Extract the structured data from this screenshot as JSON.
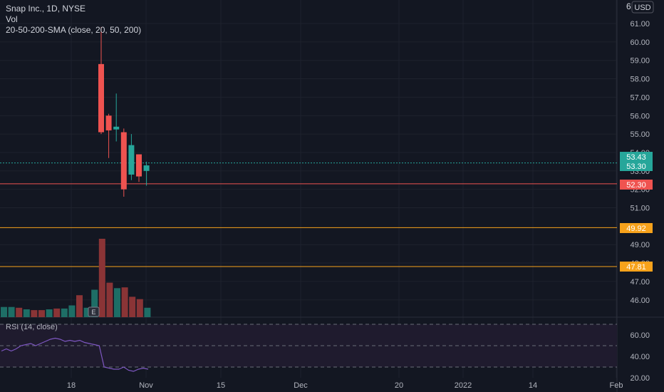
{
  "header": {
    "symbol_line": "Snap Inc., 1D, NYSE",
    "vol_label": "Vol",
    "sma_label": "20-50-200-SMA (close, 20, 50, 200)"
  },
  "currency_button": "USD",
  "top_right_glyph": "6",
  "price_axis": {
    "labels": [
      "61.00",
      "60.00",
      "59.00",
      "58.00",
      "57.00",
      "56.00",
      "55.00",
      "54.00",
      "53.00",
      "52.00",
      "51.00",
      "49.00",
      "48.00",
      "47.00",
      "46.00"
    ],
    "values": [
      61,
      60,
      59,
      58,
      57,
      56,
      55,
      54,
      53,
      52,
      51,
      49,
      48,
      47,
      46
    ]
  },
  "price_tags": [
    {
      "label": "53.43",
      "value": 53.43,
      "color": "#26a69a"
    },
    {
      "label": "53.30",
      "value": 53.3,
      "color": "#26a69a"
    },
    {
      "label": "52.30",
      "value": 52.3,
      "color": "#ef5350"
    },
    {
      "label": "49.92",
      "value": 49.92,
      "color": "#f7a21b"
    },
    {
      "label": "47.81",
      "value": 47.81,
      "color": "#f7a21b"
    }
  ],
  "horizontal_lines": [
    {
      "value": 53.43,
      "color": "#26a69a",
      "style": "dotted"
    },
    {
      "value": 52.3,
      "color": "#ef5350",
      "style": "solid"
    },
    {
      "value": 49.92,
      "color": "#f7a21b",
      "style": "solid"
    },
    {
      "value": 47.81,
      "color": "#f7a21b",
      "style": "solid"
    }
  ],
  "time_axis": {
    "labels": [
      "18",
      "Nov",
      "15",
      "Dec",
      "20",
      "2022",
      "14",
      "Feb"
    ]
  },
  "rsi": {
    "label": "RSI (14, close)",
    "axis_labels": [
      "60.00",
      "40.00",
      "20.00"
    ],
    "axis_values": [
      60,
      40,
      20
    ],
    "bands": [
      70,
      50,
      30
    ],
    "values": [
      45,
      47,
      45,
      47,
      50,
      51,
      52,
      50,
      52,
      54,
      56,
      57,
      56,
      54,
      55,
      54,
      55,
      53,
      52,
      51,
      50,
      30,
      29,
      28,
      28,
      30,
      27,
      26,
      28,
      29,
      28
    ]
  },
  "earnings_marker": "E",
  "chart_data": {
    "type": "candlestick",
    "candles": [
      {
        "open": 58.8,
        "high": 60.8,
        "low": 55.0,
        "close": 55.1
      },
      {
        "open": 56.0,
        "high": 56.1,
        "low": 53.7,
        "close": 55.2
      },
      {
        "open": 55.25,
        "high": 57.2,
        "low": 54.6,
        "close": 55.4
      },
      {
        "open": 55.1,
        "high": 55.3,
        "low": 51.6,
        "close": 52.0
      },
      {
        "open": 52.8,
        "high": 55.0,
        "low": 52.5,
        "close": 54.4
      },
      {
        "open": 53.9,
        "high": 53.9,
        "low": 52.4,
        "close": 52.7
      },
      {
        "open": 53.0,
        "high": 53.5,
        "low": 52.2,
        "close": 53.3
      }
    ],
    "volume": [
      {
        "v": 0.13,
        "dir": "up"
      },
      {
        "v": 0.13,
        "dir": "up"
      },
      {
        "v": 0.12,
        "dir": "down"
      },
      {
        "v": 0.1,
        "dir": "up"
      },
      {
        "v": 0.09,
        "dir": "down"
      },
      {
        "v": 0.09,
        "dir": "down"
      },
      {
        "v": 0.1,
        "dir": "up"
      },
      {
        "v": 0.11,
        "dir": "down"
      },
      {
        "v": 0.11,
        "dir": "up"
      },
      {
        "v": 0.15,
        "dir": "up"
      },
      {
        "v": 0.28,
        "dir": "down"
      },
      {
        "v": 0.12,
        "dir": "up"
      },
      {
        "v": 0.35,
        "dir": "up"
      },
      {
        "v": 1.0,
        "dir": "down"
      },
      {
        "v": 0.44,
        "dir": "down"
      },
      {
        "v": 0.37,
        "dir": "up"
      },
      {
        "v": 0.38,
        "dir": "down"
      },
      {
        "v": 0.26,
        "dir": "down"
      },
      {
        "v": 0.23,
        "dir": "down"
      },
      {
        "v": 0.12,
        "dir": "up"
      }
    ]
  },
  "colors": {
    "up": "#26a69a",
    "down": "#ef5350",
    "up_vol": "#1e6e66",
    "down_vol": "#8a3436",
    "grid": "#1e222d",
    "axis_text": "#b2b5be",
    "rsi_line": "#7e57c2",
    "rsi_bg": "#1f1b2e"
  }
}
